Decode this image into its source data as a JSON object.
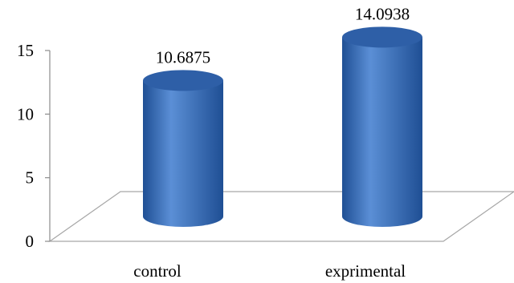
{
  "chart_data": {
    "type": "bar",
    "style": "3d-cylinder",
    "categories": [
      "control",
      "exprimental"
    ],
    "values": [
      10.6875,
      14.0938
    ],
    "data_labels": [
      "10.6875",
      "14.0938"
    ],
    "ylim": [
      0,
      15
    ],
    "yticks": [
      "0",
      "5",
      "10",
      "15"
    ],
    "grid": false,
    "legend": "none",
    "colors": {
      "bar_light": "#5b8fd6",
      "bar_mid": "#3f73be",
      "bar_dark": "#1f4f94",
      "bar_top": "#2e5fa7",
      "floor_line": "#a6a6a6",
      "axis": "#8c8c8c"
    }
  }
}
